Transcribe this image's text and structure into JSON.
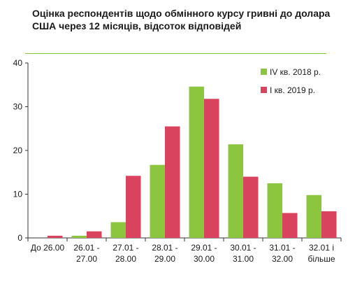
{
  "chart_data": {
    "type": "bar",
    "title": "Оцінка респондентів щодо обмінного курсу гривні до долара США через 12 місяців, відсоток відповідей",
    "categories": [
      [
        "До 26.00"
      ],
      [
        "26.01 -",
        "27.00"
      ],
      [
        "27.01 -",
        "28.00"
      ],
      [
        "28.01 -",
        "29.00"
      ],
      [
        "29.01 -",
        "30.00"
      ],
      [
        "30.01 -",
        "31.00"
      ],
      [
        "31.01 -",
        "32.00"
      ],
      [
        "32.01 і",
        "більше"
      ]
    ],
    "series": [
      {
        "name": "IV кв. 2018 р.",
        "color": "#8cc63f",
        "values": [
          0.0,
          0.5,
          3.6,
          16.7,
          34.6,
          21.4,
          12.5,
          9.8
        ]
      },
      {
        "name": "I кв. 2019 р.",
        "color": "#d9435e",
        "values": [
          0.5,
          1.5,
          14.2,
          25.5,
          31.8,
          14.0,
          5.7,
          6.1
        ]
      }
    ],
    "ylim": [
      0,
      40
    ],
    "yticks": [
      "0",
      "10",
      "20",
      "30",
      "40"
    ],
    "grid": false,
    "legend": "top-right"
  }
}
